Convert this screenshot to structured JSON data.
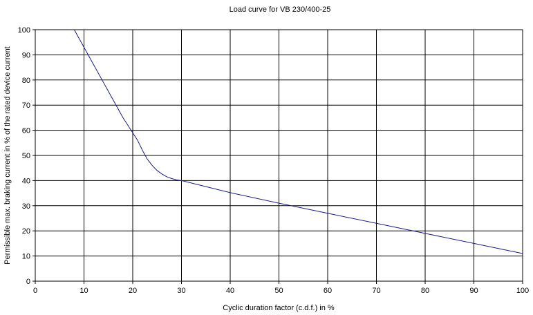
{
  "chart_data": {
    "type": "line",
    "title": "Load curve for VB 230/400-25",
    "xlabel": "Cyclic duration factor (c.d.f.) in %",
    "ylabel": "Permissible max. braking current in % of the rated device current",
    "xlim": [
      0,
      100
    ],
    "ylim": [
      0,
      100
    ],
    "x_ticks": [
      0,
      10,
      20,
      30,
      40,
      50,
      60,
      70,
      80,
      90,
      100
    ],
    "y_ticks": [
      0,
      10,
      20,
      30,
      40,
      50,
      60,
      70,
      80,
      90,
      100
    ],
    "grid": true,
    "series": [
      {
        "color": "#1a1a8c",
        "x": [
          8,
          10,
          12,
          14,
          16,
          18,
          20,
          21,
          22,
          23,
          24,
          25,
          26,
          27,
          28,
          29,
          30,
          40,
          50,
          60,
          70,
          80,
          90,
          100
        ],
        "y": [
          100,
          93,
          86,
          79,
          72,
          65,
          59,
          56,
          52,
          48.5,
          46,
          44,
          42.6,
          41.5,
          40.8,
          40.3,
          40,
          35.2,
          31,
          27,
          23,
          19,
          15,
          11
        ]
      }
    ]
  }
}
